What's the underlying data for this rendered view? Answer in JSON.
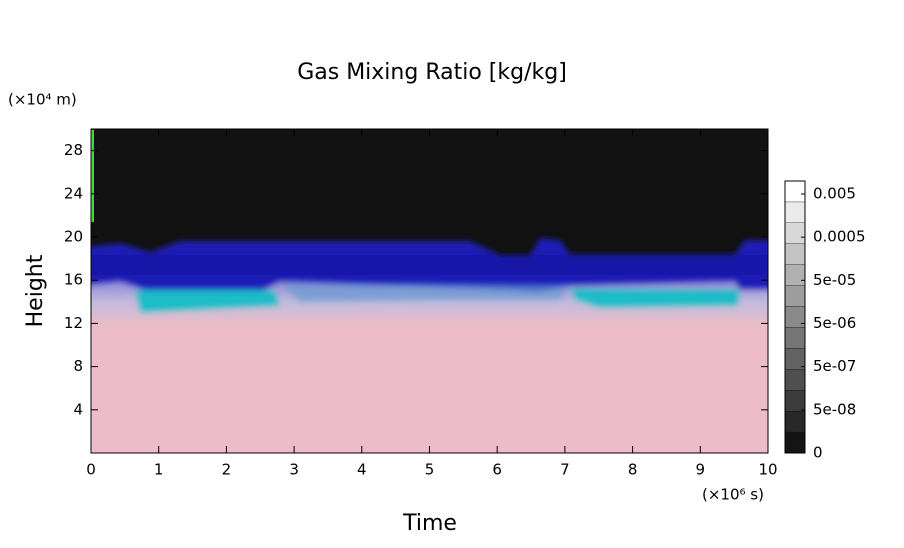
{
  "chart_data": {
    "type": "heatmap",
    "title": "Gas Mixing Ratio [kg/kg]",
    "x_label": "Time",
    "y_label": "Height",
    "x_unit": "(×10⁶ s)",
    "y_unit": "(×10⁴ m)",
    "xlim": [
      0,
      10
    ],
    "xticks": [
      0,
      1,
      2,
      3,
      4,
      5,
      6,
      7,
      8,
      9,
      10
    ],
    "ylim": [
      0,
      30
    ],
    "yticks": [
      4,
      8,
      12,
      16,
      20,
      24,
      28
    ],
    "colorbar": {
      "log": true,
      "lim": [
        5e-09,
        0.01
      ],
      "ticks": [
        0,
        {
          "value": 5e-08,
          "label": "5e-08"
        },
        {
          "value": 5e-07,
          "label": "5e-07"
        },
        {
          "value": 5e-06,
          "label": "5e-06"
        },
        {
          "value": 5e-05,
          "label": "5e-05"
        },
        0.0005,
        0.005
      ]
    }
  }
}
